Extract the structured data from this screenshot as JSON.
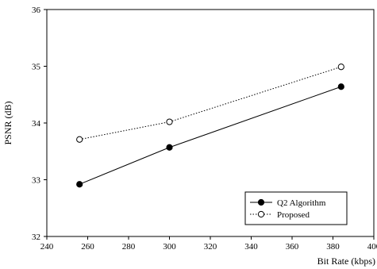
{
  "chart_data": {
    "type": "line",
    "title": "",
    "xlabel": "Bit Rate (kbps)",
    "ylabel": "PSNR (dB)",
    "xlim": [
      240,
      400
    ],
    "ylim": [
      32,
      36
    ],
    "xticks": [
      240,
      260,
      280,
      300,
      320,
      340,
      360,
      380,
      400
    ],
    "yticks": [
      32,
      33,
      34,
      35,
      36
    ],
    "grid": false,
    "legend_position": "bottom-right",
    "series": [
      {
        "name": "Q2 Algorithm",
        "x": [
          256,
          300,
          384
        ],
        "y": [
          32.92,
          33.57,
          34.64
        ],
        "line_style": "solid",
        "marker": "filled-circle"
      },
      {
        "name": "Proposed",
        "x": [
          256,
          300,
          384
        ],
        "y": [
          33.71,
          34.02,
          34.99
        ],
        "line_style": "dotted",
        "marker": "open-circle"
      }
    ]
  }
}
